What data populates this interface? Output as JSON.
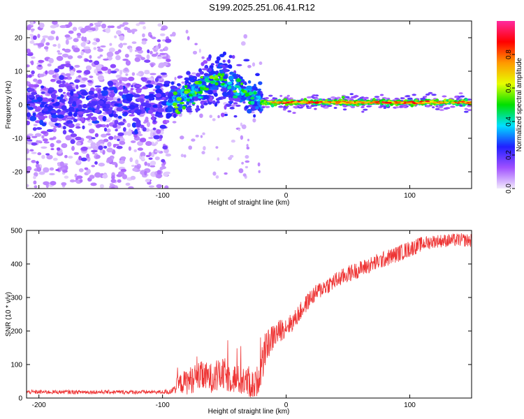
{
  "title": "S199.2025.251.06.41.R12",
  "chart_data": [
    {
      "type": "heatmap",
      "name": "spectrogram",
      "xlabel": "Height of straight line (km)",
      "ylabel": "Frequency (Hz)",
      "xlim": [
        -210,
        150
      ],
      "ylim": [
        -25,
        25
      ],
      "xticks": [
        -200,
        -100,
        0,
        100
      ],
      "xtick_labels": [
        "-200",
        "-100",
        "0",
        "100"
      ],
      "yticks": [
        20,
        10,
        0,
        -10,
        -20
      ],
      "ytick_labels": [
        "20",
        "10",
        "0",
        "-10",
        "-20"
      ],
      "colorbar": {
        "label": "Normalized spectral amplitude",
        "range": [
          0.0,
          1.0
        ],
        "ticks": [
          0.0,
          0.2,
          0.4,
          0.6,
          0.8
        ],
        "tick_labels": [
          "0.0",
          "0.2",
          "0.4",
          "0.6",
          "0.8"
        ],
        "colors": [
          "#f2eafd",
          "#a050ff",
          "#2020ff",
          "#00e0ff",
          "#00e000",
          "#e6ff00",
          "#ff9900",
          "#ff0000",
          "#ff2aa0"
        ]
      },
      "features": {
        "noise_region_km": [
          -210,
          -95
        ],
        "transition_region_km": [
          -95,
          -20
        ],
        "steady_tone_km": [
          -20,
          150
        ],
        "steady_tone_frequency_hz": 0.7,
        "bulge_peak_km": -55,
        "bulge_peak_frequency_hz": 7
      }
    },
    {
      "type": "line",
      "name": "snr",
      "xlabel": "Height of straight line (km)",
      "ylabel": "SNR (10 * v/v)",
      "xlim": [
        -210,
        150
      ],
      "ylim": [
        0,
        500
      ],
      "xticks": [
        -200,
        -100,
        0,
        100
      ],
      "xtick_labels": [
        "-200",
        "-100",
        "0",
        "100"
      ],
      "yticks": [
        0,
        100,
        200,
        300,
        400,
        500
      ],
      "ytick_labels": [
        "0",
        "100",
        "200",
        "300",
        "400",
        "500"
      ],
      "color": "#ee3333",
      "series": [
        {
          "name": "SNR",
          "x": [
            -210,
            -150,
            -100,
            -92,
            -88,
            -80,
            -70,
            -60,
            -50,
            -40,
            -30,
            -25,
            -20,
            -15,
            -10,
            -5,
            0,
            5,
            10,
            20,
            30,
            40,
            50,
            60,
            70,
            80,
            90,
            100,
            110,
            120,
            130,
            140,
            150
          ],
          "y": [
            18,
            18,
            18,
            20,
            40,
            50,
            65,
            60,
            70,
            55,
            45,
            35,
            90,
            160,
            185,
            200,
            215,
            225,
            250,
            300,
            330,
            350,
            370,
            385,
            400,
            415,
            430,
            445,
            460,
            468,
            470,
            472,
            470
          ],
          "noise_amplitude": [
            6,
            6,
            6,
            10,
            25,
            40,
            45,
            45,
            50,
            45,
            45,
            45,
            50,
            45,
            40,
            35,
            30,
            28,
            28,
            26,
            26,
            26,
            25,
            25,
            25,
            25,
            25,
            25,
            22,
            20,
            20,
            20,
            20
          ]
        }
      ]
    }
  ]
}
